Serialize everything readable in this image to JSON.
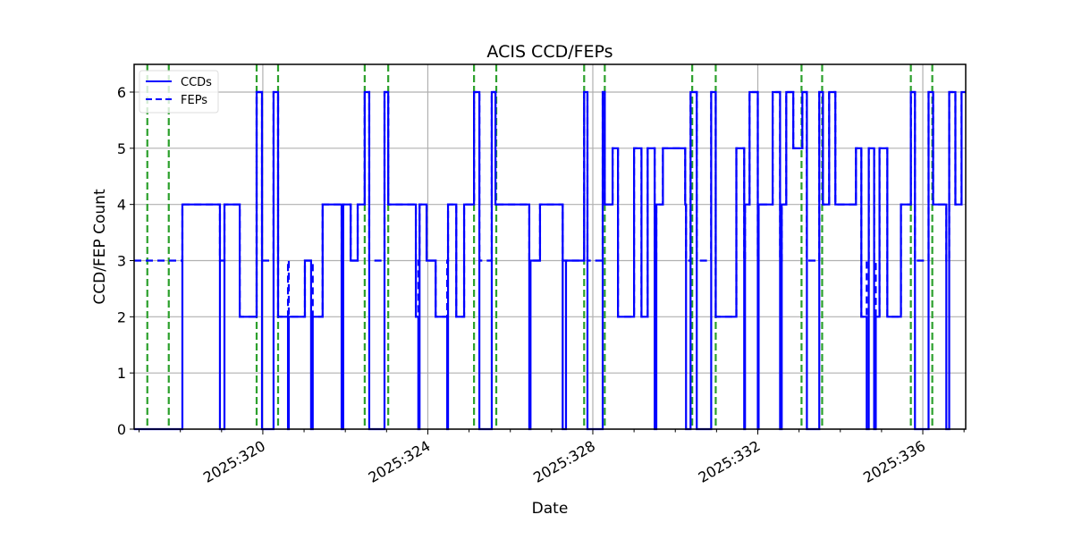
{
  "chart_data": {
    "type": "line",
    "title": "ACIS CCD/FEPs",
    "xlabel": "Date",
    "ylabel": "CCD/FEP Count",
    "xlim": [
      316.88,
      337.04
    ],
    "ylim": [
      0,
      6.5
    ],
    "x_ticks": [
      320,
      324,
      328,
      332,
      336
    ],
    "x_tick_labels": [
      "2025:320",
      "2025:324",
      "2025:328",
      "2025:332",
      "2025:336"
    ],
    "y_ticks": [
      0,
      1,
      2,
      3,
      4,
      5,
      6
    ],
    "y_tick_labels": [
      "0",
      "1",
      "2",
      "3",
      "4",
      "5",
      "6"
    ],
    "grid": true,
    "legend": {
      "placement": "top-left",
      "entries": [
        "CCDs",
        "FEPs"
      ]
    },
    "colors": {
      "series": "#0000ff",
      "events": "#2ca02c",
      "grid": "#b0b0b0"
    },
    "step_x": [
      316.88,
      318.05,
      318.96,
      319.07,
      319.44,
      319.85,
      319.98,
      320.26,
      320.37,
      320.61,
      320.63,
      321.02,
      321.17,
      321.21,
      321.45,
      321.91,
      321.95,
      322.13,
      322.3,
      322.47,
      322.58,
      322.95,
      323.04,
      323.71,
      323.77,
      323.8,
      323.97,
      324.19,
      324.47,
      324.49,
      324.69,
      324.88,
      325.12,
      325.25,
      325.55,
      325.64,
      326.46,
      326.49,
      326.72,
      327.27,
      327.35,
      327.79,
      327.87,
      328.24,
      328.29,
      328.48,
      328.61,
      329.0,
      329.18,
      329.33,
      329.5,
      329.54,
      329.7,
      330.24,
      330.26,
      330.37,
      330.52,
      330.87,
      330.98,
      331.48,
      331.67,
      331.69,
      331.8,
      332.0,
      332.02,
      332.36,
      332.54,
      332.58,
      332.69,
      332.86,
      333.08,
      333.19,
      333.49,
      333.58,
      333.73,
      333.88,
      334.38,
      334.51,
      334.64,
      334.69,
      334.82,
      334.86,
      334.95,
      335.14,
      335.47,
      335.71,
      335.81,
      336.14,
      336.25,
      336.57,
      336.64,
      336.79,
      336.94,
      337.04
    ],
    "series": [
      {
        "name": "CCDs",
        "style": "solid",
        "values": [
          0,
          4,
          0,
          4,
          2,
          6,
          0,
          6,
          2,
          0,
          2,
          3,
          0,
          2,
          4,
          0,
          4,
          3,
          4,
          6,
          0,
          6,
          4,
          2,
          0,
          4,
          3,
          2,
          0,
          4,
          2,
          4,
          6,
          0,
          6,
          4,
          0,
          3,
          4,
          0,
          3,
          6,
          0,
          6,
          4,
          5,
          2,
          5,
          2,
          5,
          0,
          4,
          5,
          4,
          0,
          6,
          0,
          6,
          2,
          5,
          0,
          4,
          6,
          0,
          4,
          6,
          0,
          4,
          6,
          5,
          6,
          0,
          6,
          4,
          6,
          4,
          5,
          2,
          0,
          5,
          0,
          2,
          5,
          2,
          4,
          6,
          0,
          6,
          4,
          0,
          6,
          4,
          6
        ]
      },
      {
        "name": "FEPs",
        "style": "dashed",
        "values": [
          3,
          4,
          3,
          4,
          2,
          6,
          3,
          6,
          2,
          3,
          2,
          3,
          3,
          2,
          4,
          3,
          4,
          3,
          4,
          6,
          3,
          6,
          4,
          2,
          3,
          4,
          3,
          2,
          3,
          4,
          2,
          4,
          6,
          3,
          6,
          4,
          3,
          3,
          4,
          3,
          3,
          6,
          3,
          6,
          4,
          5,
          2,
          5,
          2,
          5,
          3,
          4,
          5,
          4,
          3,
          6,
          3,
          6,
          2,
          5,
          3,
          4,
          6,
          3,
          4,
          6,
          3,
          4,
          6,
          5,
          6,
          3,
          6,
          4,
          6,
          4,
          5,
          2,
          3,
          5,
          3,
          2,
          5,
          2,
          4,
          6,
          3,
          6,
          4,
          3,
          6,
          4,
          6
        ]
      }
    ],
    "event_lines_x": [
      317.2,
      317.72,
      319.85,
      320.37,
      322.47,
      323.04,
      325.12,
      325.66,
      327.79,
      328.29,
      330.41,
      330.98,
      333.06,
      333.56,
      335.71,
      336.23
    ]
  }
}
